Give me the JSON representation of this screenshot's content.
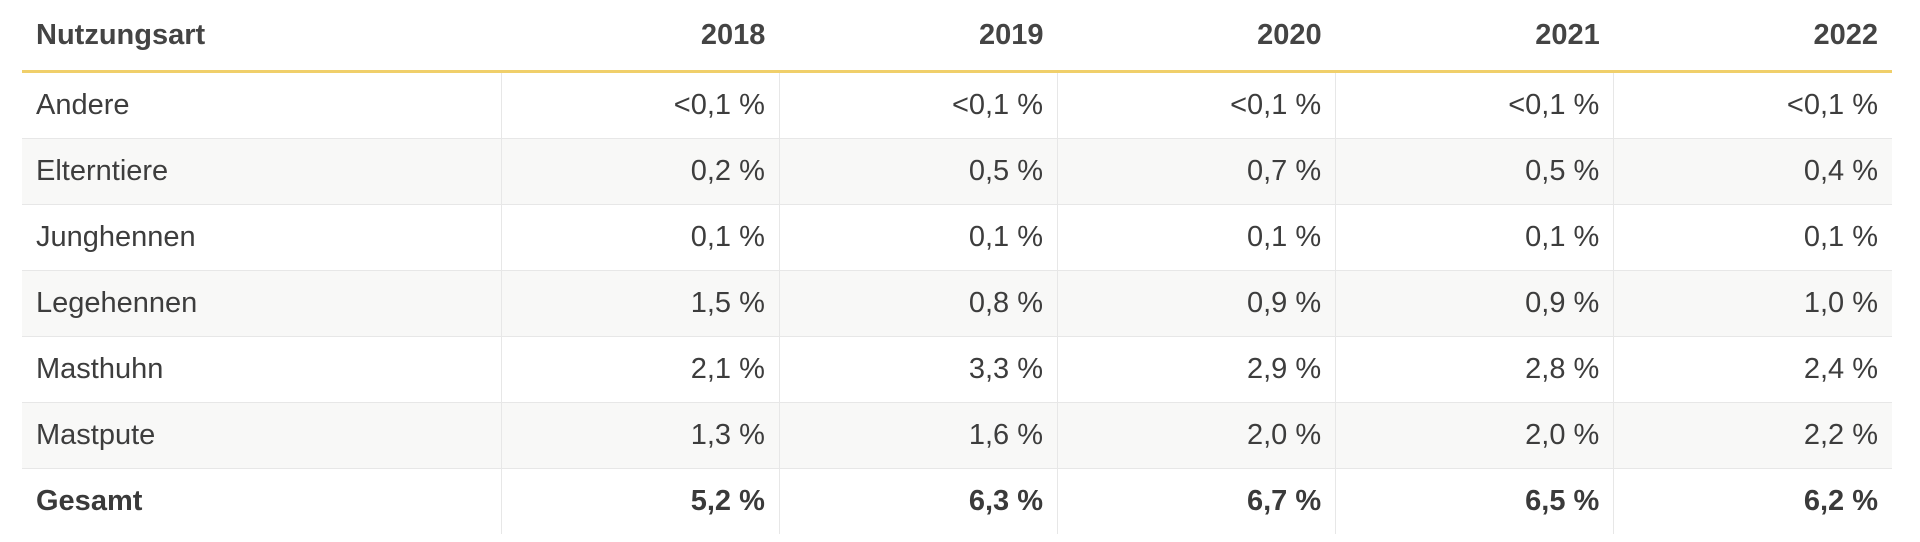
{
  "chart_data": {
    "type": "table",
    "columns": [
      "Nutzungsart",
      "2018",
      "2019",
      "2020",
      "2021",
      "2022"
    ],
    "rows": [
      {
        "label": "Andere",
        "values": [
          "<0,1 %",
          "<0,1 %",
          "<0,1 %",
          "<0,1 %",
          "<0,1 %"
        ]
      },
      {
        "label": "Elterntiere",
        "values": [
          "0,2 %",
          "0,5 %",
          "0,7 %",
          "0,5 %",
          "0,4 %"
        ]
      },
      {
        "label": "Junghennen",
        "values": [
          "0,1 %",
          "0,1 %",
          "0,1 %",
          "0,1 %",
          "0,1 %"
        ]
      },
      {
        "label": "Legehennen",
        "values": [
          "1,5 %",
          "0,8 %",
          "0,9 %",
          "0,9 %",
          "1,0 %"
        ]
      },
      {
        "label": "Masthuhn",
        "values": [
          "2,1 %",
          "3,3 %",
          "2,9 %",
          "2,8 %",
          "2,4 %"
        ]
      },
      {
        "label": "Mastpute",
        "values": [
          "1,3 %",
          "1,6 %",
          "2,0 %",
          "2,0 %",
          "2,2 %"
        ]
      },
      {
        "label": "Gesamt",
        "values": [
          "5,2 %",
          "6,3 %",
          "6,7 %",
          "6,5 %",
          "6,2 %"
        ],
        "bold": true
      }
    ],
    "colors": {
      "header_underline": "#f0cf6a",
      "row_stripe": "#f8f8f7",
      "grid": "#e7e7e7"
    }
  }
}
